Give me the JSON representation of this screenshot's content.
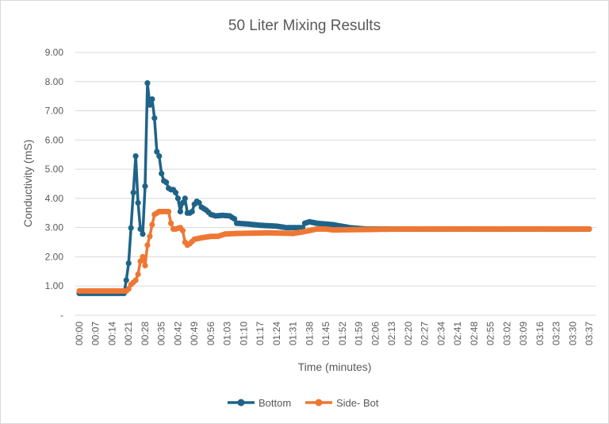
{
  "chart_data": {
    "type": "line",
    "title": "50 Liter Mixing Results",
    "xlabel": "Time (minutes)",
    "ylabel": "Conductivity (mS)",
    "xlim_seconds": [
      0,
      217
    ],
    "ylim": [
      0,
      9
    ],
    "grid": true,
    "legend_position": "bottom",
    "y_ticks": [
      {
        "value": 0,
        "label": "-"
      },
      {
        "value": 1,
        "label": "1.00"
      },
      {
        "value": 2,
        "label": "2.00"
      },
      {
        "value": 3,
        "label": "3.00"
      },
      {
        "value": 4,
        "label": "4.00"
      },
      {
        "value": 5,
        "label": "5.00"
      },
      {
        "value": 6,
        "label": "6.00"
      },
      {
        "value": 7,
        "label": "7.00"
      },
      {
        "value": 8,
        "label": "8.00"
      },
      {
        "value": 9,
        "label": "9.00"
      }
    ],
    "x_tick_labels": [
      "00:00",
      "00:07",
      "00:14",
      "00:21",
      "00:28",
      "00:35",
      "00:42",
      "00:49",
      "00:56",
      "01:03",
      "01:10",
      "01:17",
      "01:24",
      "01:31",
      "01:38",
      "01:45",
      "01:52",
      "01:59",
      "02:06",
      "02:13",
      "02:20",
      "02:27",
      "02:34",
      "02:41",
      "02:48",
      "02:55",
      "03:02",
      "03:09",
      "03:16",
      "03:23",
      "03:30",
      "03:37"
    ],
    "x_tick_step_seconds": 7,
    "series": [
      {
        "name": "Bottom",
        "color": "#1f6388",
        "points": [
          [
            0,
            0.75
          ],
          [
            19,
            0.75
          ],
          [
            20,
            1.2
          ],
          [
            21,
            1.78
          ],
          [
            23,
            4.2
          ],
          [
            24,
            5.45
          ],
          [
            25,
            3.85
          ],
          [
            26,
            2.95
          ],
          [
            27,
            2.78
          ],
          [
            28,
            4.42
          ],
          [
            29,
            7.95
          ],
          [
            30,
            7.2
          ],
          [
            31,
            7.4
          ],
          [
            32,
            6.75
          ],
          [
            33,
            5.6
          ],
          [
            34,
            5.45
          ],
          [
            35,
            4.85
          ],
          [
            36,
            4.6
          ],
          [
            37,
            4.55
          ],
          [
            38,
            4.35
          ],
          [
            39,
            4.3
          ],
          [
            40,
            4.3
          ],
          [
            41,
            4.2
          ],
          [
            42,
            4.0
          ],
          [
            43,
            3.55
          ],
          [
            44,
            3.85
          ],
          [
            45,
            4.0
          ],
          [
            46,
            3.5
          ],
          [
            47,
            3.5
          ],
          [
            48,
            3.55
          ],
          [
            49,
            3.8
          ],
          [
            50,
            3.9
          ],
          [
            51,
            3.85
          ],
          [
            52,
            3.7
          ],
          [
            53,
            3.65
          ],
          [
            54,
            3.6
          ],
          [
            56,
            3.45
          ],
          [
            58,
            3.4
          ],
          [
            61,
            3.42
          ],
          [
            64,
            3.4
          ],
          [
            66,
            3.3
          ],
          [
            67,
            3.15
          ],
          [
            72,
            3.12
          ],
          [
            77,
            3.08
          ],
          [
            84,
            3.05
          ],
          [
            88,
            3.0
          ],
          [
            95,
            3.0
          ],
          [
            96,
            3.15
          ],
          [
            98,
            3.2
          ],
          [
            101,
            3.15
          ],
          [
            108,
            3.1
          ],
          [
            115,
            3.0
          ],
          [
            122,
            2.95
          ],
          [
            217,
            2.95
          ]
        ]
      },
      {
        "name": "Side- Bot",
        "color": "#ee7733",
        "points": [
          [
            0,
            0.83
          ],
          [
            20,
            0.83
          ],
          [
            21,
            0.9
          ],
          [
            22,
            1.05
          ],
          [
            24,
            1.2
          ],
          [
            25,
            1.4
          ],
          [
            26,
            1.85
          ],
          [
            27,
            2.0
          ],
          [
            28,
            1.7
          ],
          [
            29,
            2.4
          ],
          [
            30,
            2.7
          ],
          [
            31,
            3.1
          ],
          [
            32,
            3.45
          ],
          [
            33,
            3.5
          ],
          [
            34,
            3.55
          ],
          [
            36,
            3.55
          ],
          [
            38,
            3.55
          ],
          [
            39,
            3.15
          ],
          [
            40,
            2.95
          ],
          [
            41,
            2.95
          ],
          [
            43,
            3.0
          ],
          [
            44,
            2.9
          ],
          [
            45,
            2.5
          ],
          [
            46,
            2.4
          ],
          [
            47,
            2.45
          ],
          [
            49,
            2.6
          ],
          [
            52,
            2.65
          ],
          [
            56,
            2.7
          ],
          [
            59,
            2.7
          ],
          [
            62,
            2.78
          ],
          [
            67,
            2.8
          ],
          [
            81,
            2.82
          ],
          [
            91,
            2.8
          ],
          [
            95,
            2.85
          ],
          [
            98,
            2.9
          ],
          [
            101,
            2.95
          ],
          [
            105,
            2.95
          ],
          [
            108,
            2.92
          ],
          [
            118,
            2.93
          ],
          [
            135,
            2.95
          ],
          [
            217,
            2.95
          ]
        ]
      }
    ]
  }
}
